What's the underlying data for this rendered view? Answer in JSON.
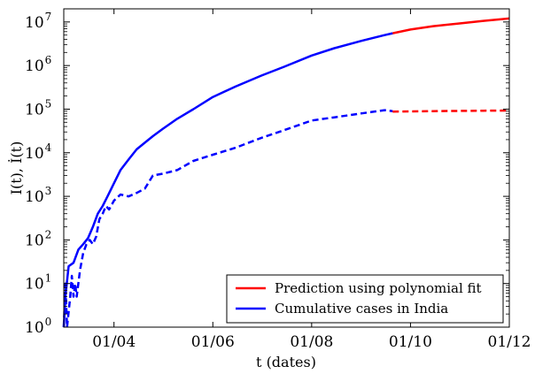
{
  "chart_data": {
    "type": "line",
    "xlabel": "t (dates)",
    "ylabel": "I(t), İ(t)",
    "x_range": [
      "2020-03-01",
      "2020-12-01"
    ],
    "y_range": [
      1,
      20000000
    ],
    "y_scale": "log",
    "x_ticks": [
      {
        "date": "2020-04-01",
        "label": "01/04"
      },
      {
        "date": "2020-06-01",
        "label": "01/06"
      },
      {
        "date": "2020-08-01",
        "label": "01/08"
      },
      {
        "date": "2020-10-01",
        "label": "01/10"
      },
      {
        "date": "2020-12-01",
        "label": "01/12"
      }
    ],
    "y_ticks": [
      {
        "value": 1,
        "base": "10",
        "exp": "0"
      },
      {
        "value": 10,
        "base": "10",
        "exp": "1"
      },
      {
        "value": 100,
        "base": "10",
        "exp": "2"
      },
      {
        "value": 1000,
        "base": "10",
        "exp": "3"
      },
      {
        "value": 10000,
        "base": "10",
        "exp": "4"
      },
      {
        "value": 100000,
        "base": "10",
        "exp": "5"
      },
      {
        "value": 1000000,
        "base": "10",
        "exp": "6"
      },
      {
        "value": 10000000,
        "base": "10",
        "exp": "7"
      }
    ],
    "grid": false,
    "legend_position": "bottom-right",
    "legend": [
      {
        "label": "Prediction using polynomial fit",
        "color": "#ff0000"
      },
      {
        "label": "Cumulative cases in India",
        "color": "#0000ff"
      }
    ],
    "series": [
      {
        "name": "Cumulative cases in India",
        "color": "#0000ff",
        "style": "solid",
        "points": [
          {
            "x": "2020-03-01",
            "y": 1
          },
          {
            "x": "2020-03-02",
            "y": 5
          },
          {
            "x": "2020-03-04",
            "y": 25
          },
          {
            "x": "2020-03-07",
            "y": 30
          },
          {
            "x": "2020-03-10",
            "y": 60
          },
          {
            "x": "2020-03-13",
            "y": 80
          },
          {
            "x": "2020-03-16",
            "y": 110
          },
          {
            "x": "2020-03-19",
            "y": 200
          },
          {
            "x": "2020-03-22",
            "y": 400
          },
          {
            "x": "2020-03-25",
            "y": 600
          },
          {
            "x": "2020-03-28",
            "y": 1000
          },
          {
            "x": "2020-04-01",
            "y": 2000
          },
          {
            "x": "2020-04-05",
            "y": 4000
          },
          {
            "x": "2020-04-10",
            "y": 7000
          },
          {
            "x": "2020-04-15",
            "y": 12000
          },
          {
            "x": "2020-04-20",
            "y": 17000
          },
          {
            "x": "2020-04-25",
            "y": 24000
          },
          {
            "x": "2020-05-01",
            "y": 35000
          },
          {
            "x": "2020-05-10",
            "y": 60000
          },
          {
            "x": "2020-05-20",
            "y": 100000
          },
          {
            "x": "2020-06-01",
            "y": 190000
          },
          {
            "x": "2020-06-15",
            "y": 330000
          },
          {
            "x": "2020-07-01",
            "y": 590000
          },
          {
            "x": "2020-07-15",
            "y": 940000
          },
          {
            "x": "2020-08-01",
            "y": 1700000
          },
          {
            "x": "2020-08-15",
            "y": 2500000
          },
          {
            "x": "2020-09-01",
            "y": 3700000
          },
          {
            "x": "2020-09-15",
            "y": 5000000
          },
          {
            "x": "2020-09-20",
            "y": 5500000
          }
        ]
      },
      {
        "name": "",
        "color": "#0000ff",
        "style": "dashed",
        "points": [
          {
            "x": "2020-03-01",
            "y": 1
          },
          {
            "x": "2020-03-02",
            "y": 10
          },
          {
            "x": "2020-03-03",
            "y": 1
          },
          {
            "x": "2020-03-05",
            "y": 5
          },
          {
            "x": "2020-03-06",
            "y": 15
          },
          {
            "x": "2020-03-07",
            "y": 5
          },
          {
            "x": "2020-03-08",
            "y": 10
          },
          {
            "x": "2020-03-09",
            "y": 5
          },
          {
            "x": "2020-03-11",
            "y": 20
          },
          {
            "x": "2020-03-13",
            "y": 50
          },
          {
            "x": "2020-03-15",
            "y": 80
          },
          {
            "x": "2020-03-17",
            "y": 100
          },
          {
            "x": "2020-03-19",
            "y": 80
          },
          {
            "x": "2020-03-21",
            "y": 120
          },
          {
            "x": "2020-03-23",
            "y": 300
          },
          {
            "x": "2020-03-25",
            "y": 400
          },
          {
            "x": "2020-03-27",
            "y": 600
          },
          {
            "x": "2020-03-29",
            "y": 500
          },
          {
            "x": "2020-04-01",
            "y": 800
          },
          {
            "x": "2020-04-05",
            "y": 1100
          },
          {
            "x": "2020-04-10",
            "y": 1000
          },
          {
            "x": "2020-04-15",
            "y": 1200
          },
          {
            "x": "2020-04-20",
            "y": 1500
          },
          {
            "x": "2020-04-25",
            "y": 3000
          },
          {
            "x": "2020-05-01",
            "y": 3300
          },
          {
            "x": "2020-05-10",
            "y": 4000
          },
          {
            "x": "2020-05-20",
            "y": 6500
          },
          {
            "x": "2020-06-01",
            "y": 9000
          },
          {
            "x": "2020-06-15",
            "y": 13000
          },
          {
            "x": "2020-07-01",
            "y": 22000
          },
          {
            "x": "2020-07-15",
            "y": 33000
          },
          {
            "x": "2020-08-01",
            "y": 55000
          },
          {
            "x": "2020-08-15",
            "y": 65000
          },
          {
            "x": "2020-09-01",
            "y": 80000
          },
          {
            "x": "2020-09-15",
            "y": 95000
          },
          {
            "x": "2020-09-20",
            "y": 90000
          }
        ]
      },
      {
        "name": "Prediction using polynomial fit",
        "color": "#ff0000",
        "style": "solid",
        "points": [
          {
            "x": "2020-09-20",
            "y": 5500000
          },
          {
            "x": "2020-10-01",
            "y": 6700000
          },
          {
            "x": "2020-10-15",
            "y": 8000000
          },
          {
            "x": "2020-11-01",
            "y": 9300000
          },
          {
            "x": "2020-11-15",
            "y": 10600000
          },
          {
            "x": "2020-12-01",
            "y": 12000000
          }
        ]
      },
      {
        "name": "",
        "color": "#ff0000",
        "style": "dashed",
        "points": [
          {
            "x": "2020-09-20",
            "y": 88000
          },
          {
            "x": "2020-10-15",
            "y": 90000
          },
          {
            "x": "2020-11-15",
            "y": 92000
          },
          {
            "x": "2020-12-01",
            "y": 93000
          }
        ]
      }
    ]
  }
}
